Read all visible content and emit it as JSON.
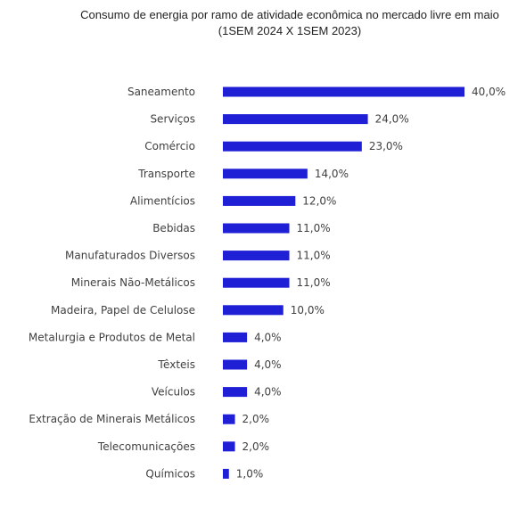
{
  "chart_data": {
    "type": "bar",
    "orientation": "horizontal",
    "title": "Consumo de energia por ramo de atividade econômica no mercado livre em maio",
    "subtitle": "(1SEM 2024 X 1SEM 2023)",
    "categories": [
      "Saneamento",
      "Serviços",
      "Comércio",
      "Transporte",
      "Alimentícios",
      "Bebidas",
      "Manufaturados Diversos",
      "Minerais Não-Metálicos",
      "Madeira, Papel de Celulose",
      "Metalurgia e Produtos de Metal",
      "Têxteis",
      "Veículos",
      "Extração de Minerais Metálicos",
      "Telecomunicações",
      "Químicos"
    ],
    "values": [
      40.0,
      24.0,
      23.0,
      14.0,
      12.0,
      11.0,
      11.0,
      11.0,
      10.0,
      4.0,
      4.0,
      4.0,
      2.0,
      2.0,
      1.0
    ],
    "value_labels": [
      "40,0%",
      "24,0%",
      "23,0%",
      "14,0%",
      "12,0%",
      "11,0%",
      "11,0%",
      "11,0%",
      "10,0%",
      "4,0%",
      "4,0%",
      "4,0%",
      "2,0%",
      "2,0%",
      "1,0%"
    ],
    "unit": "%",
    "xlim": [
      0,
      40
    ],
    "grid": false,
    "legend": "none",
    "bar_color": "#1f1fd6"
  }
}
